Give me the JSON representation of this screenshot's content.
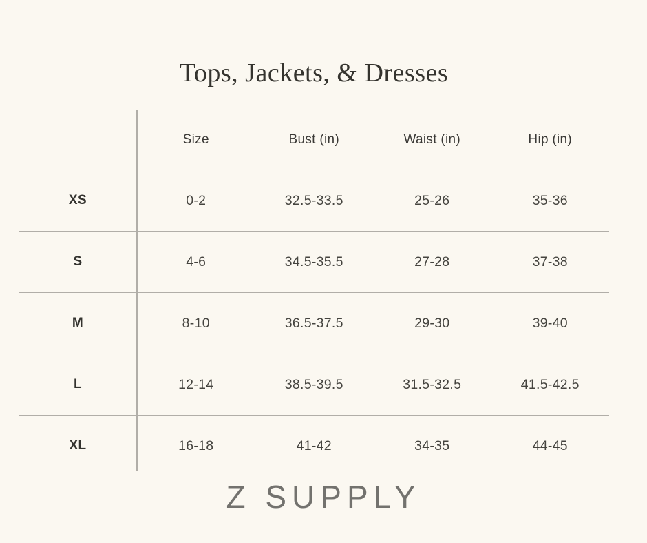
{
  "page": {
    "brand": "Z SUPPLY",
    "colors": {
      "background": "#fbf8f1",
      "line": "#b1aea8",
      "title_text": "#35342f",
      "body_text": "#45443f",
      "brand_text": "#73726e"
    }
  },
  "chart_data": {
    "type": "table",
    "title": "Tops, Jackets, & Dresses",
    "header": [
      "Size",
      "Bust (in)",
      "Waist (in)",
      "Hip (in)"
    ],
    "row_labels": [
      "XS",
      "S",
      "M",
      "L",
      "XL"
    ],
    "rows": [
      [
        "0-2",
        "32.5-33.5",
        "25-26",
        "35-36"
      ],
      [
        "4-6",
        "34.5-35.5",
        "27-28",
        "37-38"
      ],
      [
        "8-10",
        "36.5-37.5",
        "29-30",
        "39-40"
      ],
      [
        "12-14",
        "38.5-39.5",
        "31.5-32.5",
        "41.5-42.5"
      ],
      [
        "16-18",
        "41-42",
        "34-35",
        "44-45"
      ]
    ],
    "layout": {
      "grid": "horizontal rules between rows, single vertical rule after row-label column",
      "row_label_column_bold": true,
      "no_outer_border": true
    }
  }
}
